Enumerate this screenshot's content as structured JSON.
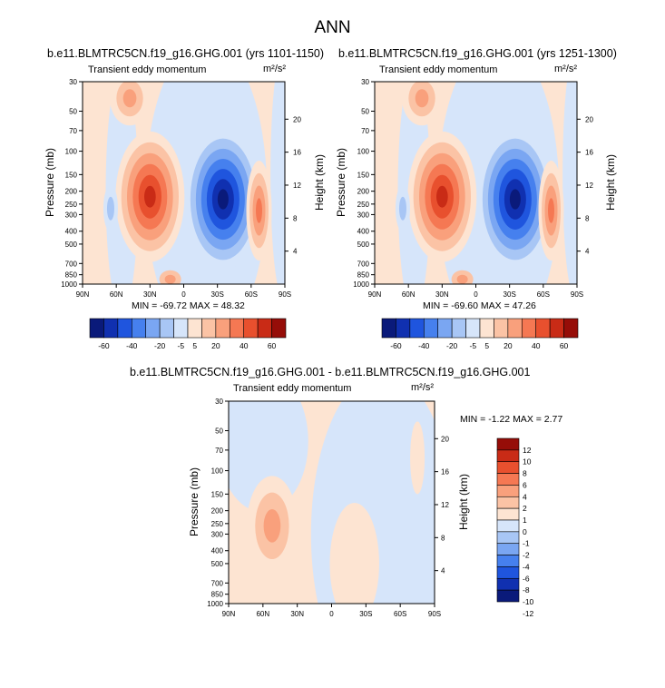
{
  "main_title": "ANN",
  "panels": [
    {
      "case_title": "b.e11.BLMTRC5CN.f19_g16.GHG.001 (yrs 1101-1150)",
      "variable": "Transient eddy momentum",
      "units": "m²/s²",
      "minmax": "MIN = -69.72  MAX =  48.32"
    },
    {
      "case_title": "b.e11.BLMTRC5CN.f19_g16.GHG.001 (yrs 1251-1300)",
      "variable": "Transient eddy momentum",
      "units": "m²/s²",
      "minmax": "MIN = -69.60  MAX =  47.26"
    },
    {
      "case_title": "b.e11.BLMTRC5CN.f19_g16.GHG.001 - b.e11.BLMTRC5CN.f19_g16.GHG.001",
      "variable": "Transient eddy momentum",
      "units": "m²/s²",
      "minmax": "MIN =  -1.22  MAX =    2.77"
    }
  ],
  "axes": {
    "xlabel_ticks": [
      "90N",
      "60N",
      "30N",
      "0",
      "30S",
      "60S",
      "90S"
    ],
    "ylabel": "Pressure (mb)",
    "pressure_ticks": [
      "30",
      "50",
      "70",
      "100",
      "150",
      "200",
      "250",
      "300",
      "400",
      "500",
      "700",
      "850",
      "1000"
    ],
    "right_label": "Height (km)",
    "height_ticks": [
      "20",
      "16",
      "12",
      "8",
      "4"
    ]
  },
  "colorbar_main": {
    "labels": [
      "-60",
      "-40",
      "-20",
      "-5",
      "5",
      "20",
      "40",
      "60"
    ]
  },
  "colorbar_diff": {
    "labels": [
      "12",
      "10",
      "8",
      "6",
      "4",
      "2",
      "1",
      "0",
      "-1",
      "-2",
      "-4",
      "-6",
      "-8",
      "-10",
      "-12"
    ]
  },
  "colors": {
    "cbar_main": [
      "#0a1a7a",
      "#1030b0",
      "#1f55de",
      "#4680ee",
      "#7aa6f2",
      "#a8c6f5",
      "#d6e5fa",
      "#fde4d2",
      "#fbc3a5",
      "#f9a07c",
      "#f57853",
      "#e8502e",
      "#c92b16",
      "#960d08"
    ],
    "cbar_diff": [
      "#960d08",
      "#c92b16",
      "#e8502e",
      "#f57853",
      "#f9a07c",
      "#fbc3a5",
      "#fde4d2",
      "#d6e5fa",
      "#a8c6f5",
      "#7aa6f2",
      "#4680ee",
      "#1f55de",
      "#1030b0",
      "#0a1a7a"
    ]
  },
  "chart_data": [
    {
      "type": "heatmap",
      "title": "b.e11.BLMTRC5CN.f19_g16.GHG.001 (yrs 1101-1150)",
      "subtitle": "Transient eddy momentum",
      "units": "m²/s²",
      "x": [
        "90N",
        "60N",
        "30N",
        "0",
        "30S",
        "60S",
        "90S"
      ],
      "ylabel": "Pressure (mb)",
      "min": -69.72,
      "max": 48.32,
      "features": [
        {
          "lat": 30,
          "pressure": 220,
          "value": 45
        },
        {
          "lat": -35,
          "pressure": 230,
          "value": -65
        },
        {
          "lat": -65,
          "pressure": 280,
          "value": 20
        },
        {
          "lat": 65,
          "pressure": 280,
          "value": -10
        },
        {
          "lat": 50,
          "pressure": 40,
          "value": 10
        }
      ]
    },
    {
      "type": "heatmap",
      "title": "b.e11.BLMTRC5CN.f19_g16.GHG.001 (yrs 1251-1300)",
      "subtitle": "Transient eddy momentum",
      "units": "m²/s²",
      "x": [
        "90N",
        "60N",
        "30N",
        "0",
        "30S",
        "60S",
        "90S"
      ],
      "ylabel": "Pressure (mb)",
      "min": -69.6,
      "max": 47.26,
      "features": [
        {
          "lat": 30,
          "pressure": 220,
          "value": 45
        },
        {
          "lat": -35,
          "pressure": 230,
          "value": -65
        },
        {
          "lat": -65,
          "pressure": 280,
          "value": 20
        },
        {
          "lat": 65,
          "pressure": 280,
          "value": -10
        },
        {
          "lat": 50,
          "pressure": 40,
          "value": 10
        }
      ]
    },
    {
      "type": "heatmap",
      "title": "b.e11.BLMTRC5CN.f19_g16.GHG.001 - b.e11.BLMTRC5CN.f19_g16.GHG.001",
      "subtitle": "Transient eddy momentum",
      "units": "m²/s²",
      "x": [
        "90N",
        "60N",
        "30N",
        "0",
        "30S",
        "60S",
        "90S"
      ],
      "ylabel": "Pressure (mb)",
      "min": -1.22,
      "max": 2.77,
      "features": [
        {
          "lat": 50,
          "pressure": 270,
          "value": 2.5
        },
        {
          "lat": 20,
          "pressure": 100,
          "value": -0.5
        },
        {
          "lat": -30,
          "pressure": 400,
          "value": 0.5
        }
      ]
    }
  ]
}
